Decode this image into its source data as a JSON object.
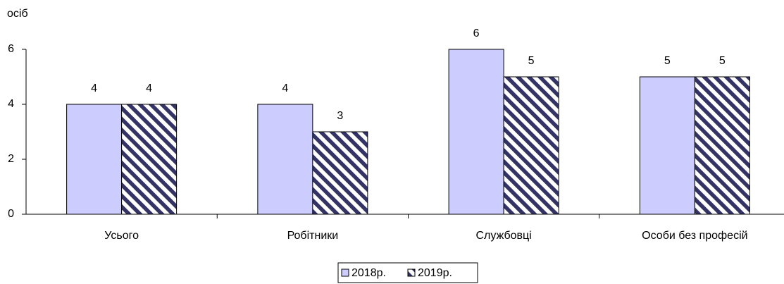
{
  "chart_data": {
    "type": "bar",
    "y_label": "осіб",
    "categories": [
      "Усього",
      "Робітники",
      "Службовці",
      "Особи без професій"
    ],
    "series": [
      {
        "name": "2018р.",
        "color": "#ccccff",
        "values": [
          4,
          4,
          6,
          5
        ]
      },
      {
        "name": "2019р.",
        "color": "#333366",
        "hatch": true,
        "values": [
          4,
          3,
          5,
          5
        ]
      }
    ],
    "ylim": [
      0,
      6
    ],
    "yticks": [
      0,
      2,
      4,
      6
    ],
    "grid": false,
    "legend": "bottom"
  }
}
